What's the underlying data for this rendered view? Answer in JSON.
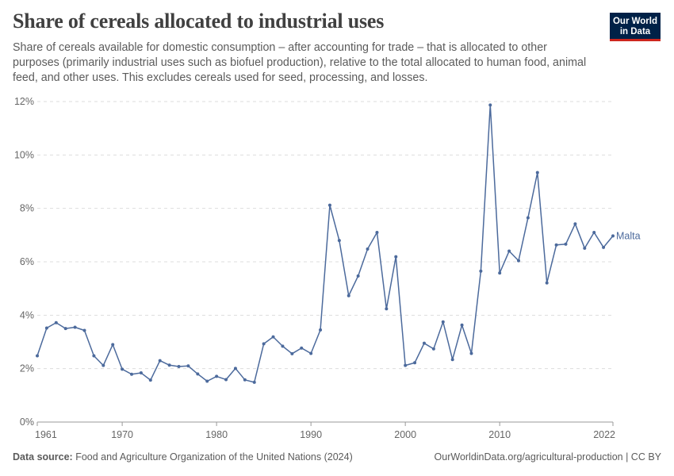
{
  "header": {
    "title": "Share of cereals allocated to industrial uses",
    "subtitle": "Share of cereals available for domestic consumption – after accounting for trade – that is allocated to other purposes (primarily industrial uses such as biofuel production), relative to the total allocated to human food, animal feed, and other uses. This excludes cereals used for seed, processing, and losses."
  },
  "logo": {
    "line1": "Our World",
    "line2": "in Data"
  },
  "footer": {
    "source_label": "Data source:",
    "source_text": "Food and Agriculture Organization of the United Nations (2024)",
    "url": "OurWorldinData.org/agricultural-production | CC BY"
  },
  "colors": {
    "series": "#4c6a9c",
    "grid": "#dddddd",
    "axis": "#999999"
  },
  "chart_data": {
    "type": "line",
    "title": "Share of cereals allocated to industrial uses",
    "xlabel": "",
    "ylabel": "",
    "xlim": [
      1961,
      2022
    ],
    "ylim": [
      0,
      12
    ],
    "x_ticks": [
      1961,
      1970,
      1980,
      1990,
      2000,
      2010,
      2022
    ],
    "y_ticks": [
      0,
      2,
      4,
      6,
      8,
      10,
      12
    ],
    "y_tick_labels": [
      "0%",
      "2%",
      "4%",
      "6%",
      "8%",
      "10%",
      "12%"
    ],
    "grid": "horizontal dashed",
    "series": [
      {
        "name": "Malta",
        "x": [
          1961,
          1962,
          1963,
          1964,
          1965,
          1966,
          1967,
          1968,
          1969,
          1970,
          1971,
          1972,
          1973,
          1974,
          1975,
          1976,
          1977,
          1978,
          1979,
          1980,
          1981,
          1982,
          1983,
          1984,
          1985,
          1986,
          1987,
          1988,
          1989,
          1990,
          1991,
          1992,
          1993,
          1994,
          1995,
          1996,
          1997,
          1998,
          1999,
          2000,
          2001,
          2002,
          2003,
          2004,
          2005,
          2006,
          2007,
          2008,
          2009,
          2010,
          2011,
          2012,
          2013,
          2014,
          2015,
          2016,
          2017,
          2018,
          2019,
          2020,
          2021,
          2022
        ],
        "y": [
          2.48,
          3.52,
          3.72,
          3.5,
          3.55,
          3.43,
          2.48,
          2.12,
          2.9,
          1.98,
          1.79,
          1.84,
          1.57,
          2.3,
          2.13,
          2.08,
          2.1,
          1.8,
          1.53,
          1.71,
          1.59,
          2.01,
          1.58,
          1.49,
          2.93,
          3.19,
          2.84,
          2.56,
          2.77,
          2.57,
          3.45,
          8.12,
          6.8,
          4.73,
          5.47,
          6.48,
          7.1,
          4.24,
          6.19,
          2.12,
          2.22,
          2.95,
          2.74,
          3.75,
          2.34,
          3.63,
          2.57,
          5.65,
          11.87,
          5.58,
          6.4,
          6.04,
          7.65,
          9.34,
          5.21,
          6.63,
          6.66,
          7.42,
          6.51,
          7.1,
          6.54,
          6.97
        ]
      }
    ]
  }
}
